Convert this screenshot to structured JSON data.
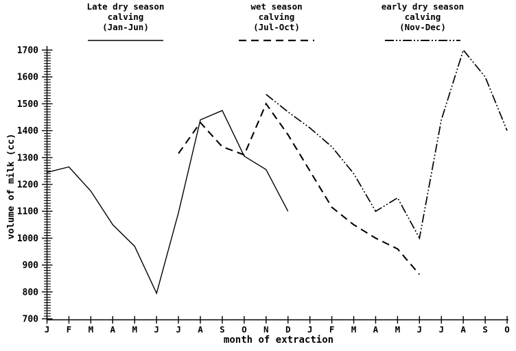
{
  "figure": {
    "background": "#ffffff",
    "ink": "#000000"
  },
  "legend": [
    {
      "label_lines": [
        "Late dry season",
        "calving",
        "(Jan-Jun)"
      ],
      "style": "solid"
    },
    {
      "label_lines": [
        "wet season",
        "calving",
        "(Jul-Oct)"
      ],
      "style": "dashed"
    },
    {
      "label_lines": [
        "early dry season",
        "calving",
        "(Nov-Dec)"
      ],
      "style": "dashdot"
    }
  ],
  "chart_data": {
    "type": "line",
    "title": "",
    "xlabel": "month of extraction",
    "ylabel": "volume of milk (cc)",
    "ylim": [
      700,
      1700
    ],
    "y_major_step": 100,
    "y_minor_step": 10,
    "y_tick_labels": [
      700,
      800,
      900,
      1000,
      1100,
      1200,
      1300,
      1400,
      1500,
      1600,
      1700
    ],
    "grid": false,
    "legend_position": "top",
    "x_categories": [
      "J",
      "F",
      "M",
      "A",
      "M",
      "J",
      "J",
      "A",
      "S",
      "O",
      "N",
      "D",
      "J",
      "F",
      "M",
      "A",
      "M",
      "J",
      "J",
      "A",
      "S",
      "O"
    ],
    "series": [
      {
        "name": "Late dry season calving (Jan-Jun)",
        "line_style": "solid",
        "start_month_index": 0,
        "values": [
          1245,
          1265,
          1175,
          1050,
          970,
          795,
          1095,
          1440,
          1475,
          1305,
          1255,
          1100
        ]
      },
      {
        "name": "wet season calving (Jul-Oct)",
        "line_style": "dashed",
        "start_month_index": 6,
        "values": [
          1315,
          1430,
          1340,
          1310,
          1500,
          1385,
          1250,
          1115,
          1050,
          1000,
          960,
          865
        ]
      },
      {
        "name": "early dry season calving (Nov-Dec)",
        "line_style": "dashdot",
        "start_month_index": 10,
        "values": [
          1535,
          1470,
          1410,
          1340,
          1240,
          1100,
          1150,
          1000,
          1440,
          1700,
          1600,
          1400
        ]
      }
    ]
  }
}
